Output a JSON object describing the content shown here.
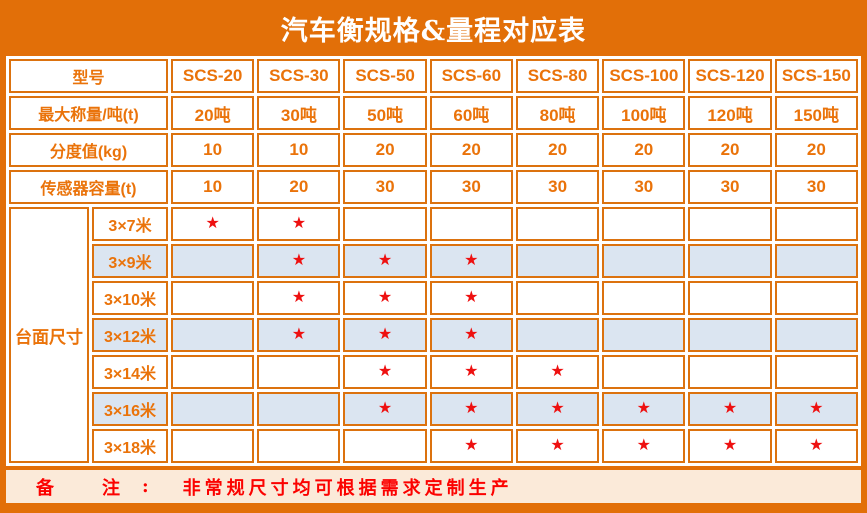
{
  "title": "汽车衡规格&量程对应表",
  "header": {
    "label": "型号",
    "models": [
      "SCS-20",
      "SCS-30",
      "SCS-50",
      "SCS-60",
      "SCS-80",
      "SCS-100",
      "SCS-120",
      "SCS-150"
    ]
  },
  "param_rows": [
    {
      "label": "最大称量/吨(t)",
      "values": [
        "20吨",
        "30吨",
        "50吨",
        "60吨",
        "80吨",
        "100吨",
        "120吨",
        "150吨"
      ]
    },
    {
      "label": "分度值(kg)",
      "values": [
        "10",
        "10",
        "20",
        "20",
        "20",
        "20",
        "20",
        "20"
      ]
    },
    {
      "label": "传感器容量(t)",
      "values": [
        "10",
        "20",
        "30",
        "30",
        "30",
        "30",
        "30",
        "30"
      ]
    }
  ],
  "platform": {
    "label": "台面尺寸",
    "star_char": "★",
    "rows": [
      {
        "size": "3×7米",
        "stars": [
          1,
          1,
          0,
          0,
          0,
          0,
          0,
          0
        ],
        "shaded": false
      },
      {
        "size": "3×9米",
        "stars": [
          0,
          1,
          1,
          1,
          0,
          0,
          0,
          0
        ],
        "shaded": true
      },
      {
        "size": "3×10米",
        "stars": [
          0,
          1,
          1,
          1,
          0,
          0,
          0,
          0
        ],
        "shaded": false
      },
      {
        "size": "3×12米",
        "stars": [
          0,
          1,
          1,
          1,
          0,
          0,
          0,
          0
        ],
        "shaded": true
      },
      {
        "size": "3×14米",
        "stars": [
          0,
          0,
          1,
          1,
          1,
          0,
          0,
          0
        ],
        "shaded": false
      },
      {
        "size": "3×16米",
        "stars": [
          0,
          0,
          1,
          1,
          1,
          1,
          1,
          1
        ],
        "shaded": true
      },
      {
        "size": "3×18米",
        "stars": [
          0,
          0,
          0,
          1,
          1,
          1,
          1,
          1
        ],
        "shaded": false
      }
    ]
  },
  "note": {
    "char1": "备",
    "char2": "注",
    "colon": ":",
    "text": "非常规尺寸均可根据需求定制生产"
  },
  "colors": {
    "orange": "#e26f08",
    "border_orange": "#dc720e",
    "cell_text": "#ea730a",
    "star_red": "#ee1010",
    "shaded_blue": "#dbe5f1",
    "note_bg": "#fbead9",
    "note_red": "#fb0200"
  }
}
